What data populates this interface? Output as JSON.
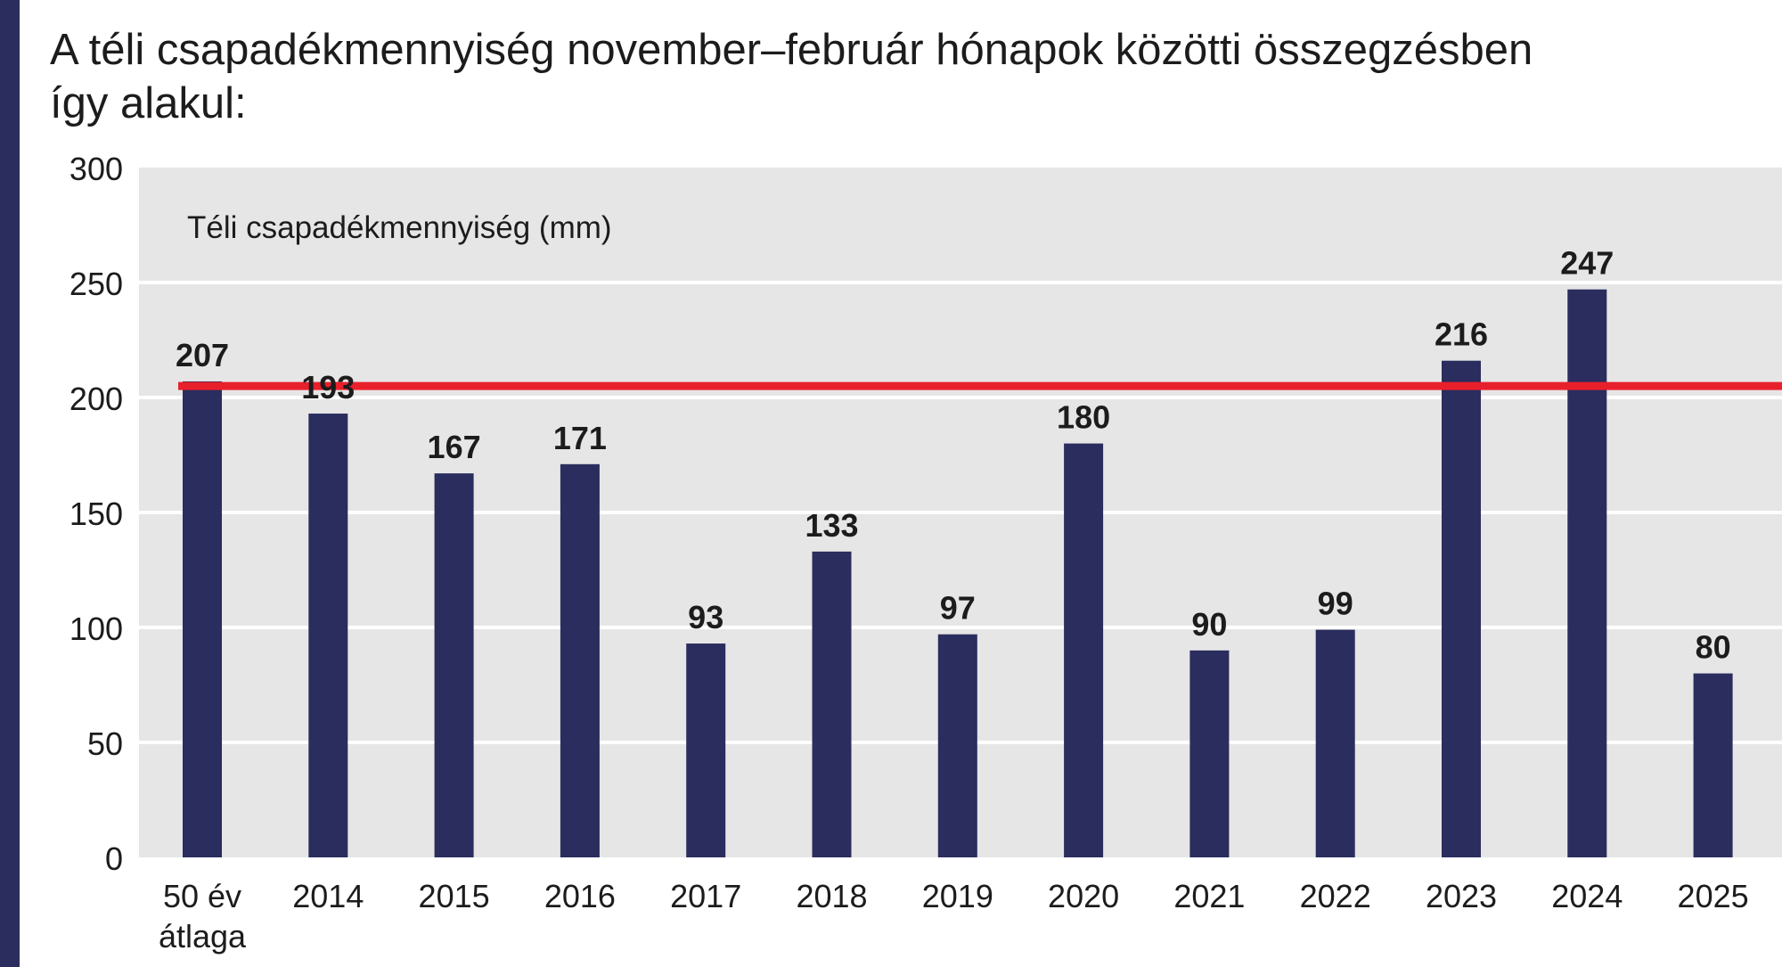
{
  "title_lines": [
    "A téli csapadékmennyiség november–február hónapok közötti összegzésben",
    "így alakul:"
  ],
  "colors": {
    "bar": "#2a2d5e",
    "reference_line": "#e8202b",
    "plot_background": "#e6e6e6",
    "gridline": "#ffffff",
    "accent": "#2a2d5e"
  },
  "chart_data": {
    "type": "bar",
    "title": "A téli csapadékmennyiség november–február hónapok közötti összegzésben így alakul:",
    "ylabel": "Téli csapadékmennyiség (mm)",
    "xlabel": "",
    "categories": [
      "50 év átlaga",
      "2014",
      "2015",
      "2016",
      "2017",
      "2018",
      "2019",
      "2020",
      "2021",
      "2022",
      "2023",
      "2024",
      "2025"
    ],
    "values": [
      207,
      193,
      167,
      171,
      93,
      133,
      97,
      180,
      90,
      99,
      216,
      247,
      80
    ],
    "data_labels": [
      "207",
      "193",
      "167",
      "171",
      "93",
      "133",
      "97",
      "180",
      "90",
      "99",
      "216",
      "247",
      "80"
    ],
    "ylim": [
      0,
      300
    ],
    "yticks": [
      0,
      50,
      100,
      150,
      200,
      250,
      300
    ],
    "grid": true,
    "reference_line": {
      "value": 205,
      "color": "#e8202b"
    }
  }
}
